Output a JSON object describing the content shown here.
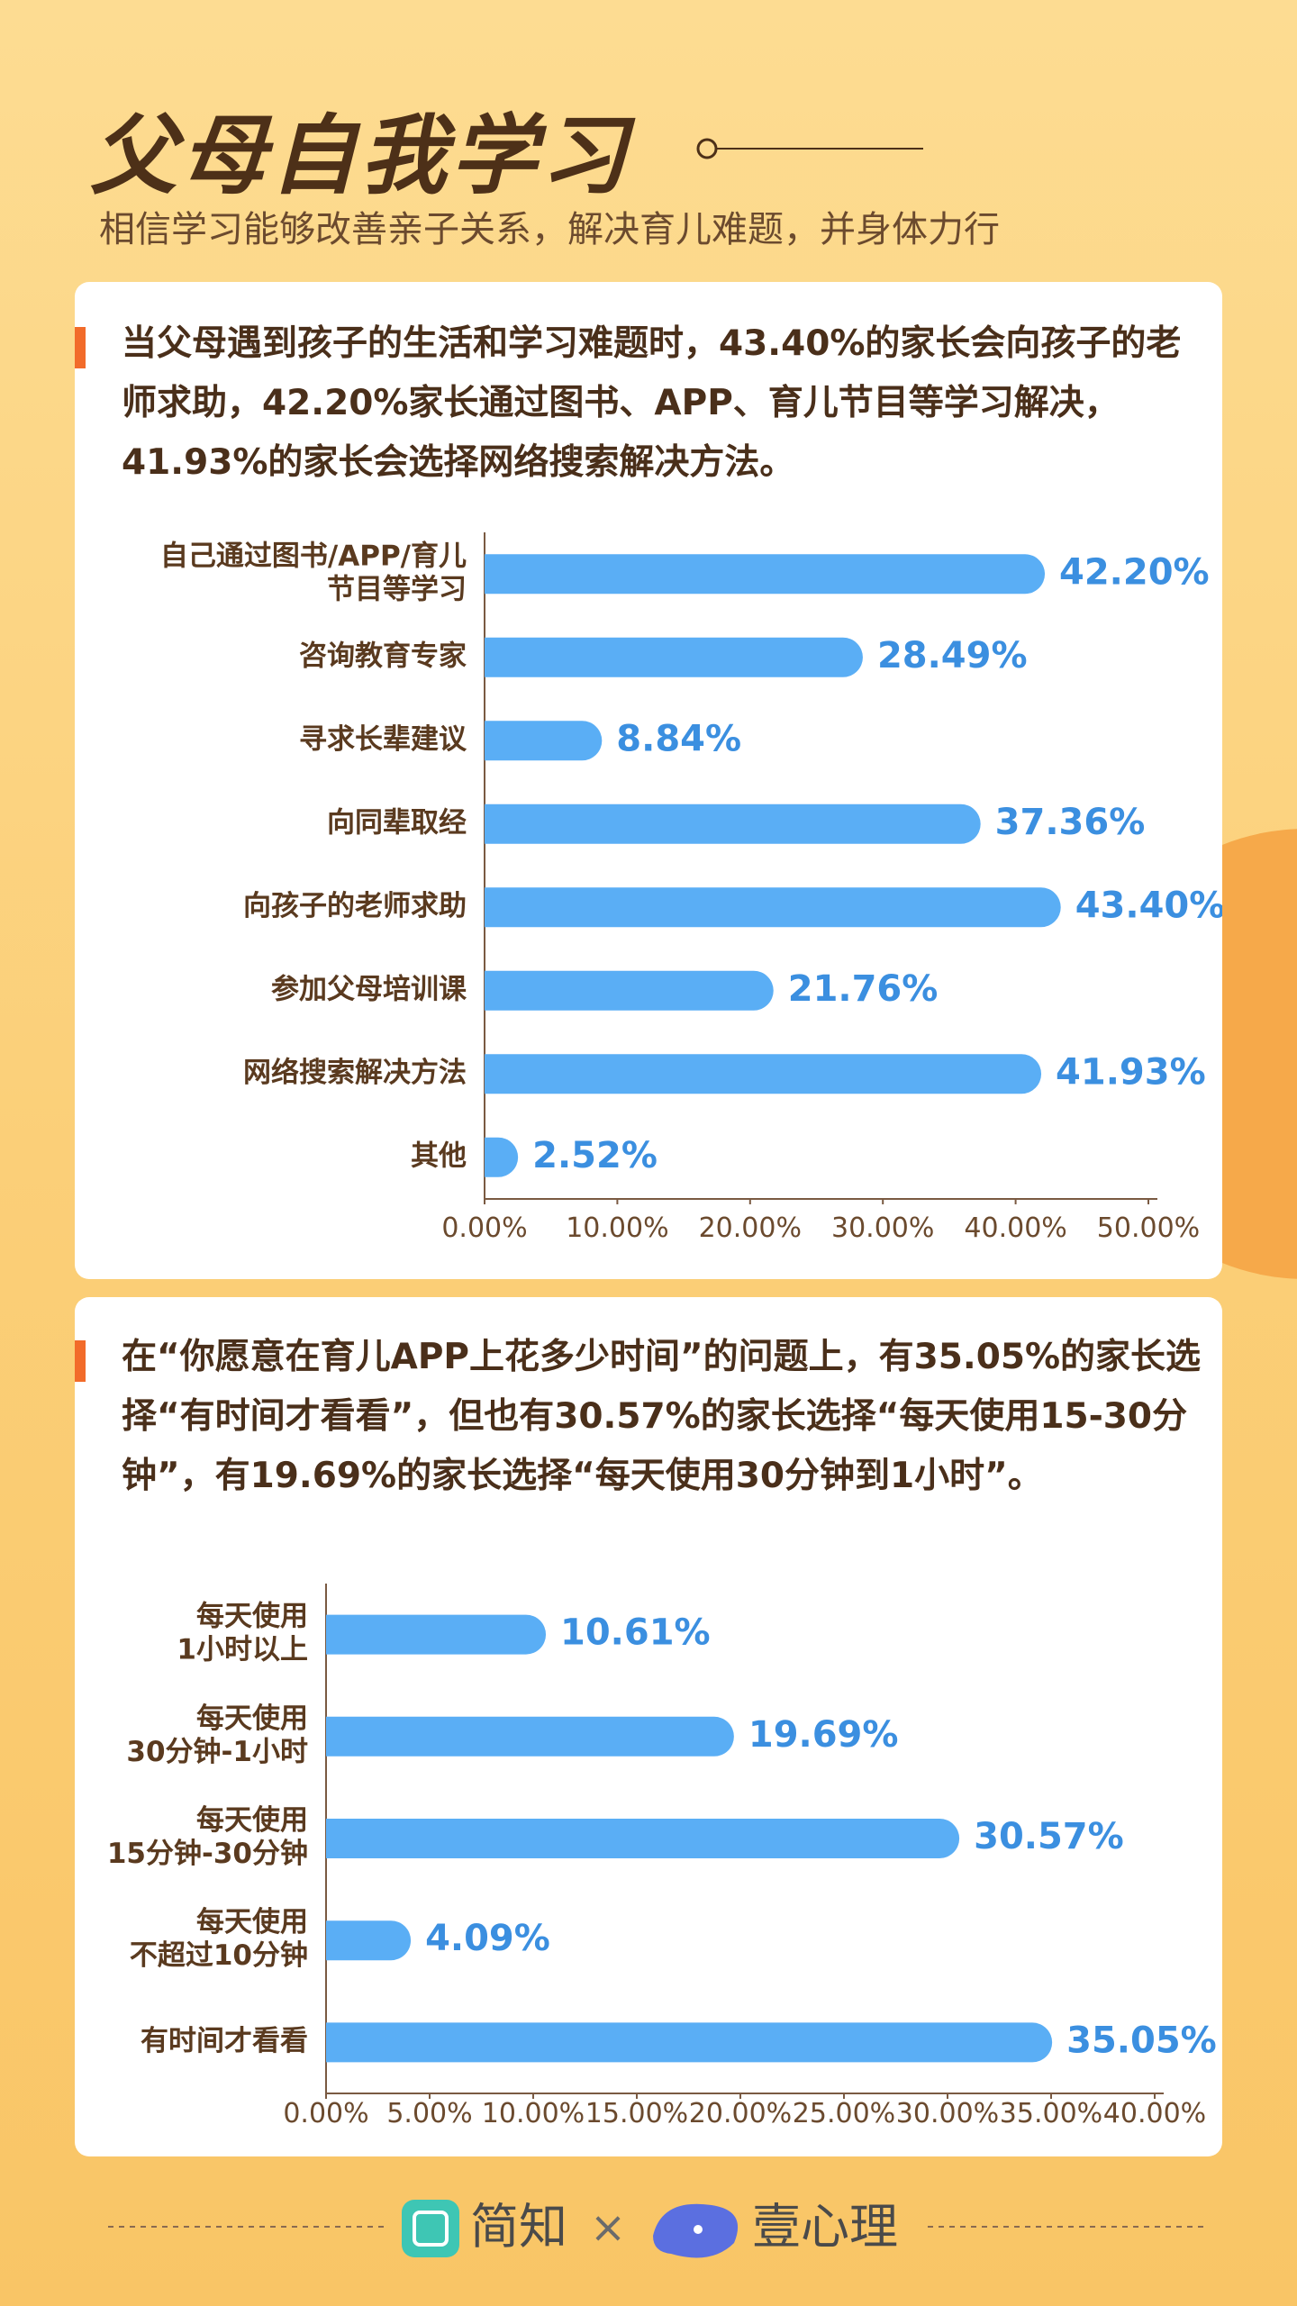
{
  "header": {
    "title": "父母自我学习",
    "subtitle": "相信学习能够改善亲子关系，解决育儿难题，并身体力行"
  },
  "chart_data": [
    {
      "type": "hbar",
      "description": "当父母遇到孩子的生活和学习难题时，43.40%的家长会向孩子的老师求助，42.20%家长通过图书、APP、育儿节目等学习解决，41.93%的家长会选择网络搜索解决方法。",
      "categories": [
        "自己通过图书/APP/育儿\n节目等学习",
        "咨询教育专家",
        "寻求长辈建议",
        "向同辈取经",
        "向孩子的老师求助",
        "参加父母培训课",
        "网络搜索解决方法",
        "其他"
      ],
      "values": [
        42.2,
        28.49,
        8.84,
        37.36,
        43.4,
        21.76,
        41.93,
        2.52
      ],
      "value_labels": [
        "42.20%",
        "28.49%",
        "8.84%",
        "37.36%",
        "43.40%",
        "21.76%",
        "41.93%",
        "2.52%"
      ],
      "color": "#5aaef5",
      "xlim": [
        0,
        50
      ],
      "xticks": [
        {
          "value": 0,
          "label": "0.00%"
        },
        {
          "value": 10,
          "label": "10.00%"
        },
        {
          "value": 20,
          "label": "20.00%"
        },
        {
          "value": 30,
          "label": "30.00%"
        },
        {
          "value": 40,
          "label": "40.00%"
        },
        {
          "value": 50,
          "label": "50.00%"
        }
      ],
      "grid": false
    },
    {
      "type": "hbar",
      "description": "在“你愿意在育儿APP上花多少时间”的问题上，有35.05%的家长选择“有时间才看看”，但也有30.57%的家长选择“每天使用15-30分钟”，有19.69%的家长选择“每天使用30分钟到1小时”。",
      "categories": [
        "每天使用\n1小时以上",
        "每天使用\n30分钟-1小时",
        "每天使用\n15分钟-30分钟",
        "每天使用\n不超过10分钟",
        "有时间才看看"
      ],
      "values": [
        10.61,
        19.69,
        30.57,
        4.09,
        35.05
      ],
      "value_labels": [
        "10.61%",
        "19.69%",
        "30.57%",
        "4.09%",
        "35.05%"
      ],
      "color": "#5aaef5",
      "xlim": [
        0,
        40
      ],
      "xticks": [
        {
          "value": 0,
          "label": "0.00%"
        },
        {
          "value": 5,
          "label": "5.00%"
        },
        {
          "value": 10,
          "label": "10.00%"
        },
        {
          "value": 15,
          "label": "15.00%"
        },
        {
          "value": 20,
          "label": "20.00%"
        },
        {
          "value": 25,
          "label": "25.00%"
        },
        {
          "value": 30,
          "label": "30.00%"
        },
        {
          "value": 35,
          "label": "35.00%"
        },
        {
          "value": 40,
          "label": "40.00%"
        }
      ],
      "grid": false
    }
  ],
  "footer": {
    "brand_left": "简知",
    "separator": "×",
    "brand_right": "壹心理"
  }
}
